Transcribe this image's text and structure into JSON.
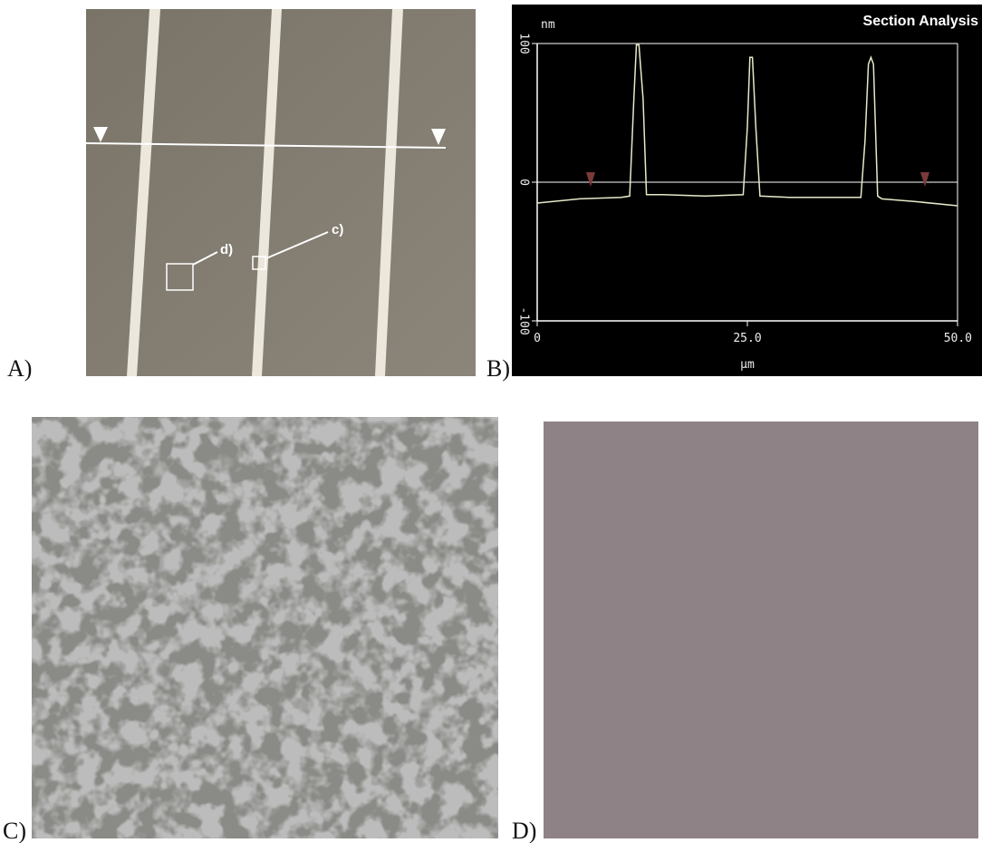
{
  "panel_labels": [
    "A)",
    "B)",
    "C)",
    "D)"
  ],
  "annotations": [
    "c)",
    "d)"
  ],
  "chart_data": {
    "type": "line",
    "title": "Section Analysis",
    "y_label": "nm",
    "x_label": "μm",
    "x": [
      0,
      5,
      10,
      11,
      11.5,
      11.8,
      12.1,
      12.6,
      13,
      15,
      20,
      24.5,
      25,
      25.3,
      25.6,
      26,
      26.5,
      30,
      35,
      38.5,
      39,
      39.4,
      39.7,
      40,
      40.5,
      41,
      45,
      50
    ],
    "values": [
      -15,
      -12,
      -11,
      -10,
      60,
      99,
      99,
      60,
      -9,
      -9,
      -10,
      -9,
      40,
      90,
      90,
      40,
      -10,
      -11,
      -11,
      -11,
      30,
      85,
      90,
      85,
      -10,
      -12,
      -14,
      -17
    ],
    "color": "#e8e8c8",
    "xlim": [
      0,
      50
    ],
    "xticks": [
      0,
      {
        "value": 25,
        "label": "25.0"
      },
      {
        "value": 50,
        "label": "50.0"
      }
    ],
    "ylim": [
      -100,
      100
    ],
    "yticks": [
      -100,
      0,
      100
    ],
    "grid": true
  }
}
